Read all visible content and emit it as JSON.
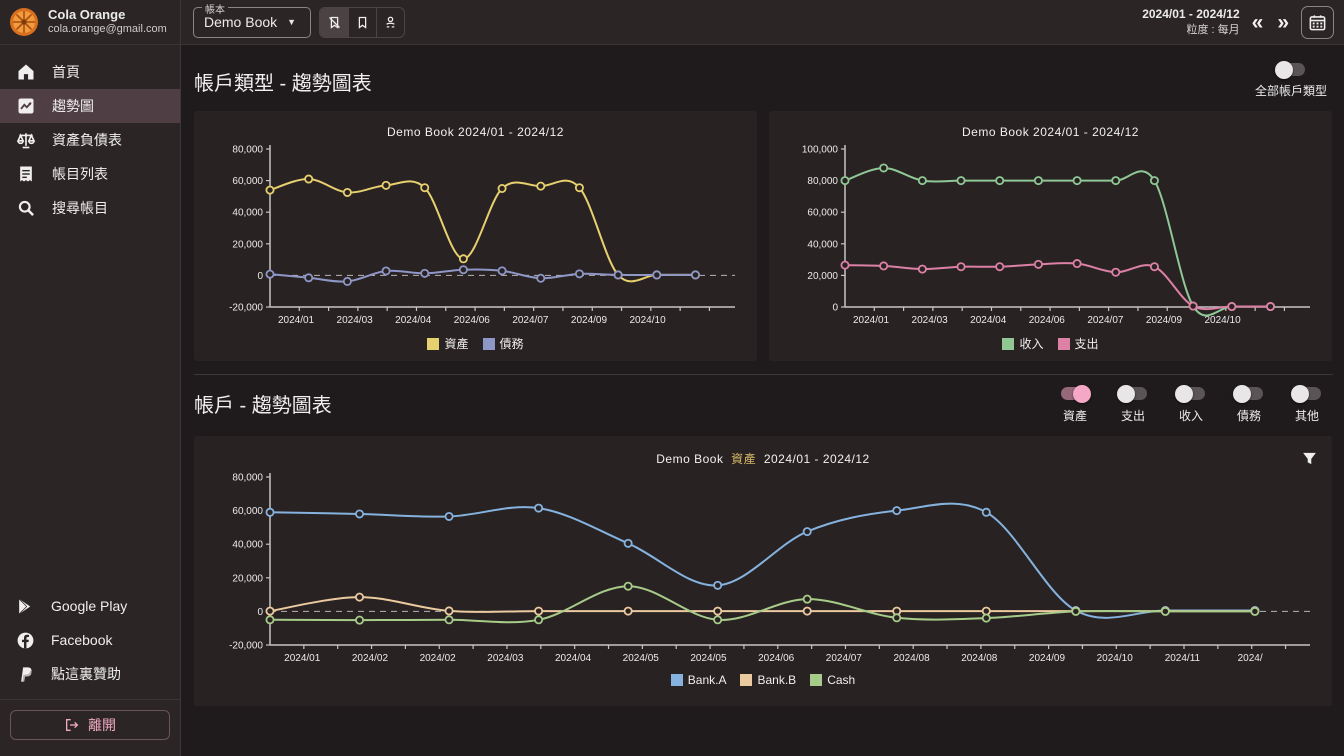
{
  "topbar": {
    "user": {
      "name": "Cola Orange",
      "email": "cola.orange@gmail.com"
    },
    "book_select": {
      "label": "帳本",
      "value": "Demo Book"
    },
    "icons": [
      "bookmark-off-icon",
      "bookmark-icon",
      "bookmark-account-icon"
    ],
    "date_range": "2024/01 - 2024/12",
    "granularity": "粒度 : 每月"
  },
  "sidebar": {
    "items": [
      {
        "label": "首頁",
        "icon": "home-icon",
        "selected": false
      },
      {
        "label": "趨勢圖",
        "icon": "trend-chart-icon",
        "selected": true
      },
      {
        "label": "資產負債表",
        "icon": "balance-scale-icon",
        "selected": false
      },
      {
        "label": "帳目列表",
        "icon": "receipt-list-icon",
        "selected": false
      },
      {
        "label": "搜尋帳目",
        "icon": "search-icon",
        "selected": false
      }
    ],
    "links": [
      {
        "label": "Google Play",
        "icon": "google-play-icon"
      },
      {
        "label": "Facebook",
        "icon": "facebook-icon"
      },
      {
        "label": "點這裏贊助",
        "icon": "paypal-icon"
      }
    ],
    "logout_label": "離開"
  },
  "sections": [
    {
      "title": "帳戶類型 - 趨勢圖表"
    },
    {
      "title": "帳戶 - 趨勢圖表"
    }
  ],
  "all_types_toggle": {
    "label": "全部帳戶類型",
    "on": false
  },
  "account_toggles": [
    {
      "label": "資產",
      "on": true
    },
    {
      "label": "支出",
      "on": false
    },
    {
      "label": "收入",
      "on": false
    },
    {
      "label": "債務",
      "on": false
    },
    {
      "label": "其他",
      "on": false
    }
  ],
  "colors": {
    "asset_yellow": "#e7d06e",
    "debt_indigo": "#8e97c6",
    "income_green": "#8fc795",
    "expense_pink": "#dd80a6",
    "bank_a_blue": "#85b2de",
    "bank_b_peach": "#eccaa0",
    "cash_green": "#a7cb89",
    "accent_pink": "#f2a9c3",
    "gold": "#d3b765",
    "card_bg": "#282223",
    "axis": "#c9c5c5"
  },
  "chart_data": [
    {
      "type": "line",
      "title": "Demo Book  2024/01  -  2024/12",
      "ylim": [
        -20000,
        80000
      ],
      "yticks": [
        -20000,
        0,
        20000,
        40000,
        60000,
        80000
      ],
      "x_labels": [
        "2024/01",
        "2024/03",
        "2024/04",
        "2024/06",
        "2024/07",
        "2024/09",
        "2024/10"
      ],
      "zero_dashed": true,
      "legend_position": "bottom",
      "series": [
        {
          "name": "資產",
          "color": "#e7d06e",
          "values": [
            54000,
            61000,
            52500,
            57000,
            55500,
            10500,
            55000,
            56500,
            55500,
            300,
            300,
            300
          ]
        },
        {
          "name": "債務",
          "color": "#8e97c6",
          "values": [
            800,
            -1500,
            -3800,
            2800,
            1300,
            3600,
            2900,
            -1800,
            1000,
            300,
            300,
            300
          ]
        }
      ]
    },
    {
      "type": "line",
      "title": "Demo Book  2024/01  -  2024/12",
      "ylim": [
        0,
        100000
      ],
      "yticks": [
        0,
        20000,
        40000,
        60000,
        80000,
        100000
      ],
      "x_labels": [
        "2024/01",
        "2024/03",
        "2024/04",
        "2024/06",
        "2024/07",
        "2024/09",
        "2024/10"
      ],
      "zero_dashed": false,
      "legend_position": "bottom",
      "series": [
        {
          "name": "收入",
          "color": "#8fc795",
          "values": [
            80000,
            88000,
            80000,
            80000,
            80000,
            80000,
            80000,
            80000,
            80000,
            600,
            300,
            300
          ]
        },
        {
          "name": "支出",
          "color": "#dd80a6",
          "values": [
            26500,
            26000,
            24000,
            25500,
            25500,
            27000,
            27500,
            22000,
            25500,
            600,
            300,
            300
          ]
        }
      ]
    },
    {
      "type": "line",
      "title_parts": {
        "book": "Demo Book",
        "account": "資產",
        "range": "2024/01  -  2024/12"
      },
      "ylim": [
        -20000,
        80000
      ],
      "yticks": [
        -20000,
        0,
        20000,
        40000,
        60000,
        80000
      ],
      "x_labels": [
        "2024/01",
        "2024/02",
        "2024/02",
        "2024/03",
        "2024/04",
        "2024/05",
        "2024/05",
        "2024/06",
        "2024/07",
        "2024/08",
        "2024/08",
        "2024/09",
        "2024/10",
        "2024/11",
        "2024/"
      ],
      "zero_dashed": true,
      "legend_position": "bottom",
      "series": [
        {
          "name": "Bank.A",
          "color": "#85b2de",
          "values": [
            59000,
            58000,
            56500,
            61500,
            40500,
            15500,
            47500,
            60000,
            59000,
            500,
            500,
            500
          ]
        },
        {
          "name": "Bank.B",
          "color": "#eccaa0",
          "values": [
            200,
            8500,
            300,
            200,
            200,
            200,
            200,
            200,
            200,
            200,
            200,
            200
          ]
        },
        {
          "name": "Cash",
          "color": "#a7cb89",
          "values": [
            -5000,
            -5200,
            -5000,
            -5000,
            15000,
            -5000,
            7300,
            -3800,
            -4000,
            0,
            0,
            0
          ]
        }
      ]
    }
  ]
}
